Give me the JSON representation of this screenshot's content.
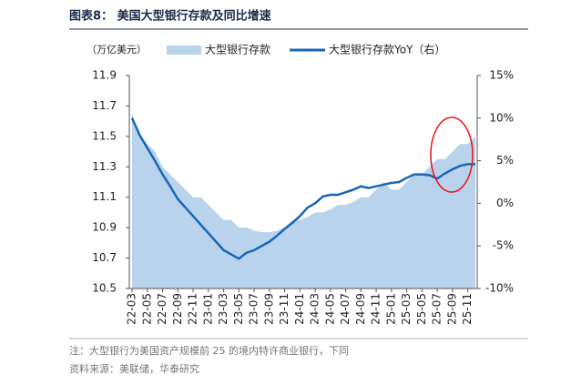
{
  "chart_data": {
    "type": "area_line",
    "title": "图表8： 美国大型银行存款及同比增速",
    "y_label": "（万亿美元）",
    "notes": [
      "注：大型银行为美国资产规模前 25 的境内特许商业银行，下同",
      "资料来源：美联储，华泰研究"
    ],
    "categories": [
      "22-03",
      null,
      "22-05",
      null,
      "22-07",
      null,
      "22-09",
      null,
      "22-11",
      null,
      "23-01",
      null,
      "23-03",
      null,
      "23-05",
      null,
      "23-07",
      null,
      "23-09",
      null,
      "23-11",
      null,
      "24-01",
      null,
      "24-03",
      null,
      "24-05",
      null,
      "24-07",
      null,
      "24-09",
      null,
      "24-11",
      null,
      "25-01",
      null,
      "25-03",
      null,
      "25-05",
      null,
      "25-07",
      null,
      "25-09",
      null,
      "25-11",
      null
    ],
    "series": [
      {
        "name": "大型银行存款",
        "color": "#b9d3ec",
        "kind": "area",
        "values": [
          11.65,
          11.5,
          11.45,
          11.4,
          11.3,
          11.25,
          11.2,
          11.15,
          11.1,
          11.1,
          11.05,
          11.0,
          10.95,
          10.95,
          10.9,
          10.9,
          10.88,
          10.87,
          10.87,
          10.88,
          10.9,
          10.95,
          10.95,
          10.97,
          11.0,
          11.0,
          11.02,
          11.05,
          11.05,
          11.07,
          11.1,
          11.1,
          11.15,
          11.2,
          11.15,
          11.15,
          11.2,
          11.25,
          11.25,
          11.3,
          11.35,
          11.35,
          11.4,
          11.45,
          11.45,
          11.5
        ]
      },
      {
        "name": "大型银行存款YoY（右）",
        "color": "#1767b8",
        "kind": "line",
        "axis": "y2",
        "values": [
          10,
          8,
          6.5,
          5,
          3.4,
          2,
          0.5,
          -0.5,
          -1.5,
          -2.5,
          -3.5,
          -4.5,
          -5.5,
          -6,
          -6.5,
          -5.8,
          -5.5,
          -5,
          -4.5,
          -3.8,
          -3,
          -2.3,
          -1.5,
          -0.5,
          0,
          0.8,
          1,
          1,
          1.3,
          1.6,
          2,
          1.8,
          2,
          2.2,
          2.4,
          2.5,
          3,
          3.4,
          3.4,
          3.3,
          2.9,
          3.5,
          4,
          4.4,
          4.6,
          4.6
        ]
      }
    ],
    "ylim": [
      10.5,
      11.9
    ],
    "yticks": [
      10.5,
      10.7,
      10.9,
      11.1,
      11.3,
      11.5,
      11.7,
      11.9
    ],
    "y2lim": [
      -10,
      15
    ],
    "y2ticks": [
      {
        "value": -10,
        "label": "-10%"
      },
      {
        "value": -5,
        "label": "-5%"
      },
      {
        "value": 0,
        "label": "0%"
      },
      {
        "value": 5,
        "label": "5%"
      },
      {
        "value": 10,
        "label": "10%"
      },
      {
        "value": 15,
        "label": "15%"
      }
    ]
  }
}
